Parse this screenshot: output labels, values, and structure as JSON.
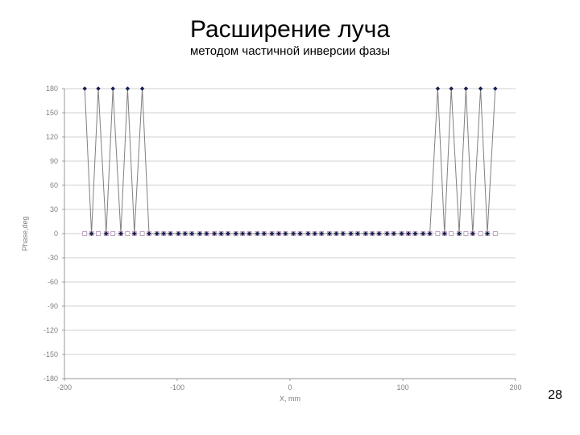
{
  "title": "Расширение луча",
  "subtitle": "методом частичной инверсии фазы",
  "page_number": "28",
  "chart": {
    "type": "line",
    "xlabel": "X, mm",
    "ylabel": "Phase,deg",
    "axis_label_fontsize": 9,
    "tick_fontsize": 9,
    "tick_color": "#808080",
    "background_color": "#ffffff",
    "grid_color": "#c0c0c0",
    "axis_color": "#808080",
    "xlim": [
      -200,
      200
    ],
    "ylim": [
      -180,
      180
    ],
    "xtick_step": 100,
    "ytick_step": 30,
    "series1": {
      "line_color": "#808080",
      "line_width": 1,
      "marker": "diamond",
      "marker_size": 5,
      "marker_fill": "#1a2250",
      "marker_stroke": "#1a2250",
      "x": [
        -182,
        -176,
        -170,
        -163,
        -157,
        -150,
        -144,
        -138,
        -131,
        -125,
        -118,
        -112,
        -106,
        -99,
        -93,
        -87,
        -80,
        -74,
        -67,
        -61,
        -55,
        -48,
        -42,
        -36,
        -29,
        -23,
        -16,
        -10,
        -4,
        3,
        9,
        16,
        22,
        28,
        35,
        41,
        47,
        54,
        60,
        67,
        73,
        79,
        86,
        92,
        99,
        105,
        111,
        118,
        124,
        131,
        137,
        143,
        150,
        156,
        162,
        169,
        175,
        182
      ],
      "y": [
        180,
        0,
        180,
        0,
        180,
        0,
        180,
        0,
        180,
        0,
        0,
        0,
        0,
        0,
        0,
        0,
        0,
        0,
        0,
        0,
        0,
        0,
        0,
        0,
        0,
        0,
        0,
        0,
        0,
        0,
        0,
        0,
        0,
        0,
        0,
        0,
        0,
        0,
        0,
        0,
        0,
        0,
        0,
        0,
        0,
        0,
        0,
        0,
        0,
        180,
        0,
        180,
        0,
        180,
        0,
        180,
        0,
        180
      ]
    },
    "series2": {
      "line_color": "none",
      "marker": "square",
      "marker_size": 5,
      "marker_fill": "#ffffff",
      "marker_stroke": "#b090b0",
      "x": [
        -182,
        -176,
        -170,
        -163,
        -157,
        -150,
        -144,
        -138,
        -131,
        -125,
        -118,
        -112,
        -106,
        -99,
        -93,
        -87,
        -80,
        -74,
        -67,
        -61,
        -55,
        -48,
        -42,
        -36,
        -29,
        -23,
        -16,
        -10,
        -4,
        3,
        9,
        16,
        22,
        28,
        35,
        41,
        47,
        54,
        60,
        67,
        73,
        79,
        86,
        92,
        99,
        105,
        111,
        118,
        124,
        131,
        137,
        143,
        150,
        156,
        162,
        169,
        175,
        182
      ],
      "y": [
        0,
        0,
        0,
        0,
        0,
        0,
        0,
        0,
        0,
        0,
        0,
        0,
        0,
        0,
        0,
        0,
        0,
        0,
        0,
        0,
        0,
        0,
        0,
        0,
        0,
        0,
        0,
        0,
        0,
        0,
        0,
        0,
        0,
        0,
        0,
        0,
        0,
        0,
        0,
        0,
        0,
        0,
        0,
        0,
        0,
        0,
        0,
        0,
        0,
        0,
        0,
        0,
        0,
        0,
        0,
        0,
        0,
        0
      ]
    }
  }
}
